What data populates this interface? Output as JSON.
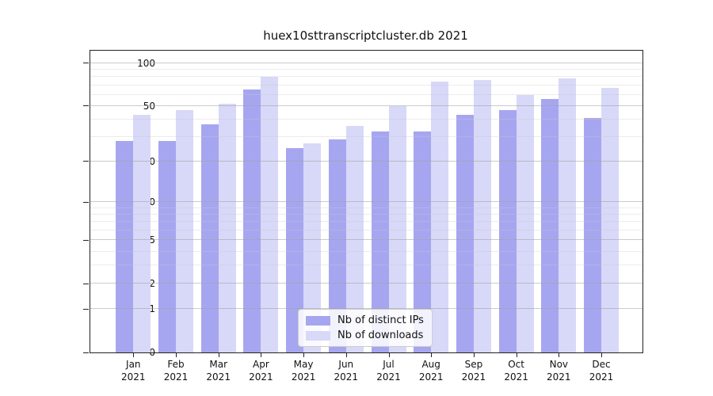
{
  "chart_data": {
    "type": "bar",
    "title": "huex10sttranscriptcluster.db 2021",
    "yscale": "log1p",
    "ylim": [
      0,
      122
    ],
    "yticks": [
      100,
      50,
      20,
      10,
      5,
      2,
      1,
      0
    ],
    "minor_gridlines": [
      90,
      80,
      70,
      60,
      40,
      30,
      9,
      8,
      7,
      6,
      4,
      3
    ],
    "grid": true,
    "legend_position": "lower center inside plot",
    "categories": [
      {
        "month": "Jan",
        "year": "2021"
      },
      {
        "month": "Feb",
        "year": "2021"
      },
      {
        "month": "Mar",
        "year": "2021"
      },
      {
        "month": "Apr",
        "year": "2021"
      },
      {
        "month": "May",
        "year": "2021"
      },
      {
        "month": "Jun",
        "year": "2021"
      },
      {
        "month": "Jul",
        "year": "2021"
      },
      {
        "month": "Aug",
        "year": "2021"
      },
      {
        "month": "Sep",
        "year": "2021"
      },
      {
        "month": "Oct",
        "year": "2021"
      },
      {
        "month": "Nov",
        "year": "2021"
      },
      {
        "month": "Dec",
        "year": "2021"
      }
    ],
    "series": [
      {
        "name": "Nb of distinct IPs",
        "color": "#a6a6f0",
        "values": [
          28,
          28,
          37,
          65,
          25,
          29,
          33,
          33,
          43,
          47,
          56,
          41
        ]
      },
      {
        "name": "Nb of downloads",
        "color": "#d8d8f8",
        "values": [
          43,
          47,
          52,
          80,
          27,
          36,
          50,
          74,
          76,
          60,
          78,
          67
        ]
      }
    ]
  }
}
